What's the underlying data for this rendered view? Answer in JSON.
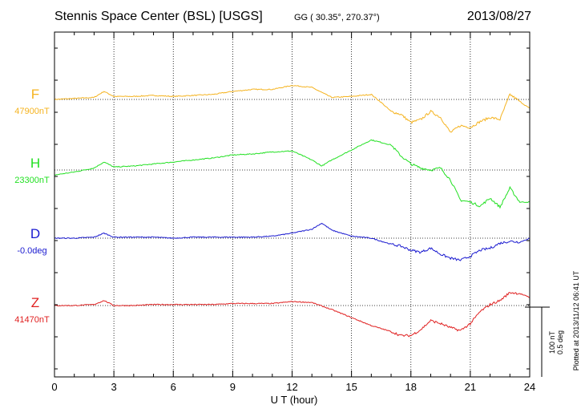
{
  "header": {
    "title": "Stennis Space Center (BSL)  [USGS]",
    "coords": "GG ( 30.35°, 270.37°)",
    "date": "2013/08/27"
  },
  "scale_bar": {
    "nt_label": "100 nT",
    "deg_label": "0.5 deg"
  },
  "footer_note": "Plotted at 2013/11/12 06:41 UT",
  "colors": {
    "F": "#f5b31f",
    "H": "#22e022",
    "D": "#1a1ad0",
    "Z": "#e02020",
    "axis": "#000000"
  },
  "chart_data": {
    "type": "line",
    "title": "Stennis Space Center (BSL)  [USGS]",
    "xlabel": "U T (hour)",
    "ylabel": "",
    "xlim": [
      0,
      24
    ],
    "xticks": [
      0,
      3,
      6,
      9,
      12,
      15,
      18,
      21,
      24
    ],
    "grid": true,
    "series": [
      {
        "name": "F",
        "label": "F",
        "baseline": "47900nT",
        "color": "#f5b31f",
        "x": [
          0,
          1,
          2,
          2.5,
          3,
          4,
          5,
          6,
          7,
          8,
          9,
          10,
          11,
          12,
          13,
          14,
          15,
          16,
          16.5,
          17,
          17.5,
          18,
          18.5,
          19,
          19.5,
          20,
          20.5,
          21,
          21.5,
          22,
          22.5,
          23,
          23.5,
          24
        ],
        "values": [
          0,
          1,
          2,
          8,
          3,
          3,
          4,
          3,
          4,
          5,
          8,
          10,
          10,
          14,
          12,
          2,
          3,
          5,
          -3,
          -12,
          -15,
          -23,
          -20,
          -12,
          -18,
          -33,
          -26,
          -28,
          -22,
          -18,
          -20,
          5,
          -2,
          -9
        ]
      },
      {
        "name": "H",
        "label": "H",
        "baseline": "23300nT",
        "color": "#22e022",
        "x": [
          0,
          1,
          2,
          2.5,
          3,
          4,
          5,
          6,
          7,
          8,
          9,
          10,
          11,
          12,
          13,
          13.5,
          14,
          15,
          16,
          17,
          17.5,
          18,
          18.5,
          19,
          19.5,
          20,
          20.5,
          21,
          21.5,
          22,
          22.5,
          23,
          23.5,
          24
        ],
        "values": [
          -5,
          -2,
          2,
          8,
          3,
          4,
          6,
          8,
          10,
          12,
          15,
          16,
          18,
          19,
          10,
          4,
          10,
          20,
          30,
          25,
          14,
          6,
          2,
          0,
          2,
          -10,
          -30,
          -32,
          -36,
          -28,
          -37,
          -18,
          -32,
          -32
        ]
      },
      {
        "name": "D",
        "label": "D",
        "baseline": "-0.0deg",
        "color": "#1a1ad0",
        "x": [
          0,
          1,
          2,
          2.5,
          3,
          4,
          5,
          6,
          7,
          8,
          9,
          10,
          11,
          12,
          13,
          13.5,
          14,
          15,
          16,
          17,
          17.5,
          18,
          18.5,
          19,
          19.5,
          20,
          20.5,
          21,
          21.5,
          22,
          22.5,
          23,
          23.5,
          24
        ],
        "values": [
          0,
          0,
          1,
          5,
          1,
          1,
          1,
          0,
          1,
          1,
          1,
          1,
          2,
          5,
          9,
          15,
          8,
          2,
          0,
          -6,
          -8,
          -12,
          -14,
          -10,
          -16,
          -20,
          -22,
          -18,
          -12,
          -10,
          -5,
          -3,
          -4,
          0
        ]
      },
      {
        "name": "Z",
        "label": "Z",
        "baseline": "41470nT",
        "color": "#e02020",
        "x": [
          0,
          1,
          2,
          2.5,
          3,
          4,
          5,
          6,
          7,
          8,
          9,
          10,
          11,
          12,
          13,
          14,
          15,
          16,
          17,
          17.5,
          18,
          18.5,
          19,
          19.5,
          20,
          20.5,
          21,
          21.5,
          22,
          22.5,
          23,
          23.5,
          24
        ],
        "values": [
          0,
          0,
          1,
          5,
          0,
          0,
          1,
          1,
          1,
          1,
          2,
          2,
          2,
          4,
          3,
          -4,
          -12,
          -20,
          -26,
          -30,
          -30,
          -24,
          -15,
          -18,
          -22,
          -25,
          -18,
          -6,
          1,
          5,
          13,
          12,
          8
        ]
      }
    ]
  }
}
